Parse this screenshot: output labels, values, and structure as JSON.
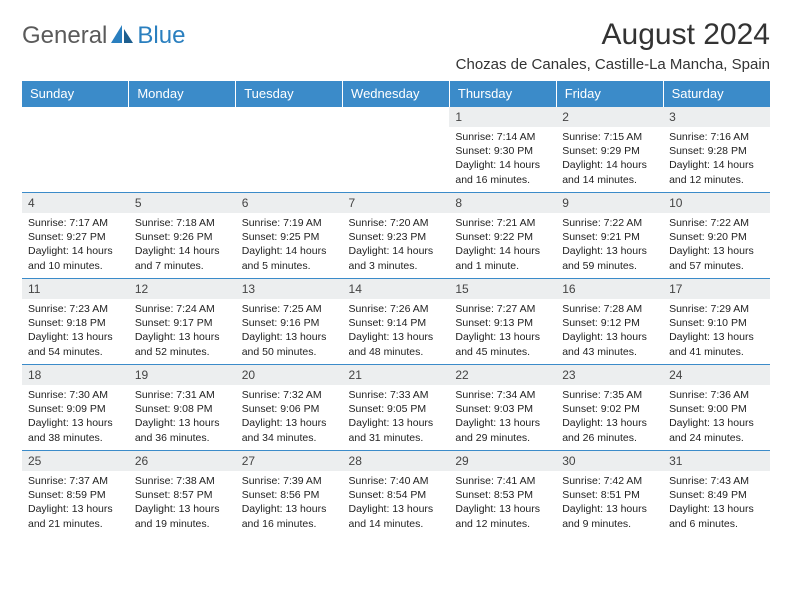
{
  "logo": {
    "text1": "General",
    "text2": "Blue"
  },
  "title": "August 2024",
  "location": "Chozas de Canales, Castille-La Mancha, Spain",
  "colors": {
    "header_bg": "#3b8bc9",
    "header_text": "#ffffff",
    "daynum_bg": "#eceeef",
    "border": "#3b8bc9",
    "logo_gray": "#5a5a5a",
    "logo_blue": "#2a7fbf"
  },
  "weekdays": [
    "Sunday",
    "Monday",
    "Tuesday",
    "Wednesday",
    "Thursday",
    "Friday",
    "Saturday"
  ],
  "weeks": [
    [
      null,
      null,
      null,
      null,
      {
        "n": "1",
        "sr": "7:14 AM",
        "ss": "9:30 PM",
        "dl": "14 hours and 16 minutes."
      },
      {
        "n": "2",
        "sr": "7:15 AM",
        "ss": "9:29 PM",
        "dl": "14 hours and 14 minutes."
      },
      {
        "n": "3",
        "sr": "7:16 AM",
        "ss": "9:28 PM",
        "dl": "14 hours and 12 minutes."
      }
    ],
    [
      {
        "n": "4",
        "sr": "7:17 AM",
        "ss": "9:27 PM",
        "dl": "14 hours and 10 minutes."
      },
      {
        "n": "5",
        "sr": "7:18 AM",
        "ss": "9:26 PM",
        "dl": "14 hours and 7 minutes."
      },
      {
        "n": "6",
        "sr": "7:19 AM",
        "ss": "9:25 PM",
        "dl": "14 hours and 5 minutes."
      },
      {
        "n": "7",
        "sr": "7:20 AM",
        "ss": "9:23 PM",
        "dl": "14 hours and 3 minutes."
      },
      {
        "n": "8",
        "sr": "7:21 AM",
        "ss": "9:22 PM",
        "dl": "14 hours and 1 minute."
      },
      {
        "n": "9",
        "sr": "7:22 AM",
        "ss": "9:21 PM",
        "dl": "13 hours and 59 minutes."
      },
      {
        "n": "10",
        "sr": "7:22 AM",
        "ss": "9:20 PM",
        "dl": "13 hours and 57 minutes."
      }
    ],
    [
      {
        "n": "11",
        "sr": "7:23 AM",
        "ss": "9:18 PM",
        "dl": "13 hours and 54 minutes."
      },
      {
        "n": "12",
        "sr": "7:24 AM",
        "ss": "9:17 PM",
        "dl": "13 hours and 52 minutes."
      },
      {
        "n": "13",
        "sr": "7:25 AM",
        "ss": "9:16 PM",
        "dl": "13 hours and 50 minutes."
      },
      {
        "n": "14",
        "sr": "7:26 AM",
        "ss": "9:14 PM",
        "dl": "13 hours and 48 minutes."
      },
      {
        "n": "15",
        "sr": "7:27 AM",
        "ss": "9:13 PM",
        "dl": "13 hours and 45 minutes."
      },
      {
        "n": "16",
        "sr": "7:28 AM",
        "ss": "9:12 PM",
        "dl": "13 hours and 43 minutes."
      },
      {
        "n": "17",
        "sr": "7:29 AM",
        "ss": "9:10 PM",
        "dl": "13 hours and 41 minutes."
      }
    ],
    [
      {
        "n": "18",
        "sr": "7:30 AM",
        "ss": "9:09 PM",
        "dl": "13 hours and 38 minutes."
      },
      {
        "n": "19",
        "sr": "7:31 AM",
        "ss": "9:08 PM",
        "dl": "13 hours and 36 minutes."
      },
      {
        "n": "20",
        "sr": "7:32 AM",
        "ss": "9:06 PM",
        "dl": "13 hours and 34 minutes."
      },
      {
        "n": "21",
        "sr": "7:33 AM",
        "ss": "9:05 PM",
        "dl": "13 hours and 31 minutes."
      },
      {
        "n": "22",
        "sr": "7:34 AM",
        "ss": "9:03 PM",
        "dl": "13 hours and 29 minutes."
      },
      {
        "n": "23",
        "sr": "7:35 AM",
        "ss": "9:02 PM",
        "dl": "13 hours and 26 minutes."
      },
      {
        "n": "24",
        "sr": "7:36 AM",
        "ss": "9:00 PM",
        "dl": "13 hours and 24 minutes."
      }
    ],
    [
      {
        "n": "25",
        "sr": "7:37 AM",
        "ss": "8:59 PM",
        "dl": "13 hours and 21 minutes."
      },
      {
        "n": "26",
        "sr": "7:38 AM",
        "ss": "8:57 PM",
        "dl": "13 hours and 19 minutes."
      },
      {
        "n": "27",
        "sr": "7:39 AM",
        "ss": "8:56 PM",
        "dl": "13 hours and 16 minutes."
      },
      {
        "n": "28",
        "sr": "7:40 AM",
        "ss": "8:54 PM",
        "dl": "13 hours and 14 minutes."
      },
      {
        "n": "29",
        "sr": "7:41 AM",
        "ss": "8:53 PM",
        "dl": "13 hours and 12 minutes."
      },
      {
        "n": "30",
        "sr": "7:42 AM",
        "ss": "8:51 PM",
        "dl": "13 hours and 9 minutes."
      },
      {
        "n": "31",
        "sr": "7:43 AM",
        "ss": "8:49 PM",
        "dl": "13 hours and 6 minutes."
      }
    ]
  ],
  "labels": {
    "sunrise": "Sunrise:",
    "sunset": "Sunset:",
    "daylight": "Daylight:"
  }
}
